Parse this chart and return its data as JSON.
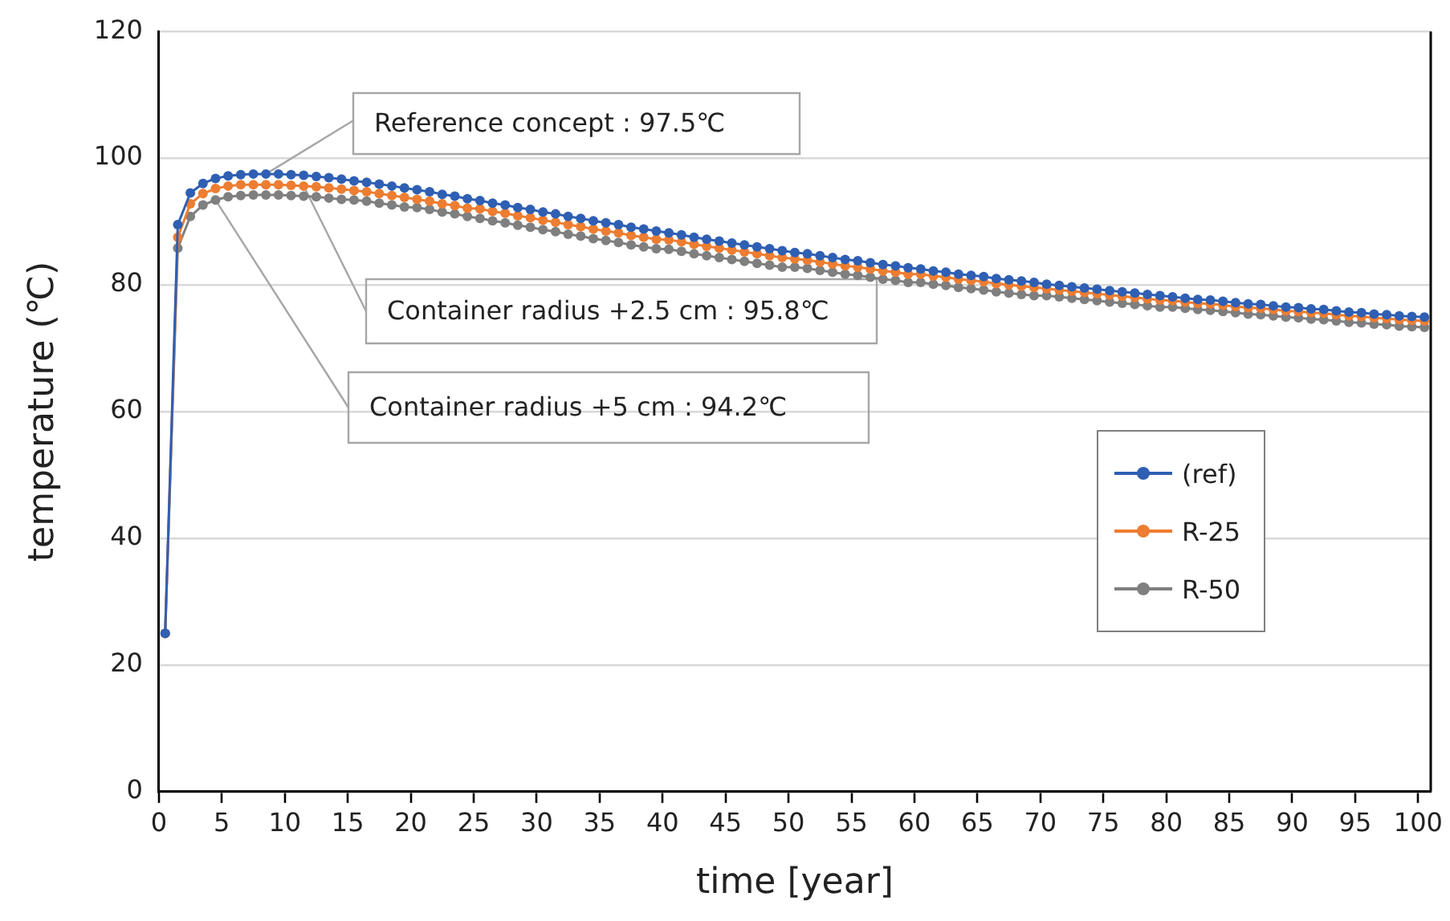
{
  "chart_data": {
    "type": "line",
    "xlabel": "time [year]",
    "ylabel": "temperature (℃)",
    "x": [
      0.5,
      1.5,
      2.5,
      3.5,
      4.5,
      5.5,
      6.5,
      7.5,
      8.5,
      9.5,
      10.5,
      11.5,
      12.5,
      13.5,
      14.5,
      15.5,
      16.5,
      17.5,
      18.5,
      19.5,
      20.5,
      21.5,
      22.5,
      23.5,
      24.5,
      25.5,
      26.5,
      27.5,
      28.5,
      29.5,
      30.5,
      31.5,
      32.5,
      33.5,
      34.5,
      35.5,
      36.5,
      37.5,
      38.5,
      39.5,
      40.5,
      41.5,
      42.5,
      43.5,
      44.5,
      45.5,
      46.5,
      47.5,
      48.5,
      49.5,
      50.5,
      51.5,
      52.5,
      53.5,
      54.5,
      55.5,
      56.5,
      57.5,
      58.5,
      59.5,
      60.5,
      61.5,
      62.5,
      63.5,
      64.5,
      65.5,
      66.5,
      67.5,
      68.5,
      69.5,
      70.5,
      71.5,
      72.5,
      73.5,
      74.5,
      75.5,
      76.5,
      77.5,
      78.5,
      79.5,
      80.5,
      81.5,
      82.5,
      83.5,
      84.5,
      85.5,
      86.5,
      87.5,
      88.5,
      89.5,
      90.5,
      91.5,
      92.5,
      93.5,
      94.5,
      95.5,
      96.5,
      97.5,
      98.5,
      99.5,
      100.5
    ],
    "series": [
      {
        "name": "(ref)",
        "color": "#2f5fb3",
        "values": [
          25,
          89.5,
          94.5,
          96.0,
          96.8,
          97.2,
          97.4,
          97.5,
          97.5,
          97.5,
          97.4,
          97.3,
          97.1,
          96.9,
          96.7,
          96.4,
          96.2,
          95.9,
          95.6,
          95.3,
          95.0,
          94.7,
          94.3,
          94.0,
          93.6,
          93.3,
          92.9,
          92.6,
          92.2,
          91.9,
          91.5,
          91.2,
          90.8,
          90.5,
          90.1,
          89.8,
          89.5,
          89.1,
          88.8,
          88.5,
          88.2,
          87.9,
          87.5,
          87.2,
          86.9,
          86.6,
          86.3,
          86.0,
          85.7,
          85.4,
          85.1,
          84.9,
          84.6,
          84.3,
          84.0,
          83.8,
          83.5,
          83.2,
          83.0,
          82.7,
          82.5,
          82.2,
          82.0,
          81.7,
          81.5,
          81.3,
          81.0,
          80.8,
          80.6,
          80.4,
          80.1,
          79.9,
          79.7,
          79.5,
          79.3,
          79.1,
          78.9,
          78.7,
          78.5,
          78.3,
          78.1,
          77.9,
          77.7,
          77.6,
          77.4,
          77.2,
          77.0,
          76.9,
          76.7,
          76.5,
          76.4,
          76.2,
          76.1,
          75.9,
          75.7,
          75.6,
          75.4,
          75.3,
          75.1,
          75.0,
          74.9
        ]
      },
      {
        "name": "R-25",
        "color": "#ed7d31",
        "values": [
          25,
          87.5,
          92.8,
          94.4,
          95.2,
          95.6,
          95.8,
          95.8,
          95.8,
          95.8,
          95.7,
          95.6,
          95.5,
          95.3,
          95.1,
          94.9,
          94.7,
          94.4,
          94.1,
          93.8,
          93.5,
          93.2,
          92.8,
          92.5,
          92.1,
          92.0,
          91.6,
          91.3,
          90.9,
          90.6,
          90.2,
          89.9,
          89.5,
          89.2,
          88.8,
          88.5,
          88.2,
          87.8,
          87.5,
          87.2,
          87.1,
          86.8,
          86.4,
          86.1,
          85.8,
          85.5,
          85.2,
          84.9,
          84.6,
          84.3,
          84.1,
          83.9,
          83.6,
          83.3,
          83.0,
          82.8,
          82.5,
          82.2,
          82.0,
          81.7,
          81.7,
          81.4,
          81.2,
          80.9,
          80.7,
          80.5,
          80.2,
          80.0,
          79.8,
          79.6,
          79.4,
          79.2,
          79.0,
          78.8,
          78.6,
          78.4,
          78.2,
          78.0,
          77.8,
          77.6,
          77.5,
          77.3,
          77.1,
          77.0,
          76.8,
          76.6,
          76.4,
          76.3,
          76.1,
          75.9,
          75.8,
          75.6,
          75.5,
          75.3,
          75.1,
          75.0,
          74.8,
          74.7,
          74.5,
          74.4,
          74.3
        ]
      },
      {
        "name": "R-50",
        "color": "#7f7f7f",
        "values": [
          25,
          85.8,
          90.8,
          92.6,
          93.4,
          93.9,
          94.1,
          94.2,
          94.2,
          94.2,
          94.1,
          94.0,
          93.9,
          93.7,
          93.5,
          93.4,
          93.2,
          92.9,
          92.6,
          92.3,
          92.2,
          91.9,
          91.5,
          91.2,
          90.8,
          90.5,
          90.1,
          89.8,
          89.4,
          89.1,
          88.7,
          88.4,
          88.0,
          87.7,
          87.3,
          87.0,
          86.7,
          86.3,
          86.0,
          85.7,
          85.6,
          85.3,
          84.9,
          84.6,
          84.3,
          84.0,
          83.7,
          83.4,
          83.1,
          82.8,
          82.8,
          82.6,
          82.3,
          82.0,
          81.7,
          81.5,
          81.2,
          80.9,
          80.7,
          80.4,
          80.4,
          80.1,
          79.9,
          79.6,
          79.4,
          79.2,
          78.9,
          78.7,
          78.5,
          78.3,
          78.3,
          78.1,
          77.9,
          77.7,
          77.5,
          77.3,
          77.1,
          76.9,
          76.7,
          76.5,
          76.5,
          76.3,
          76.1,
          76.0,
          75.8,
          75.6,
          75.4,
          75.3,
          75.1,
          74.9,
          74.8,
          74.6,
          74.5,
          74.3,
          74.1,
          74.0,
          73.8,
          73.7,
          73.5,
          73.4,
          73.3
        ]
      }
    ],
    "xlim": [
      0,
      101
    ],
    "xticks": [
      0,
      5,
      10,
      15,
      20,
      25,
      30,
      35,
      40,
      45,
      50,
      55,
      60,
      65,
      70,
      75,
      80,
      85,
      90,
      95,
      100
    ],
    "ylim": [
      0,
      120
    ],
    "yticks": [
      0,
      20,
      40,
      60,
      80,
      100,
      120
    ],
    "grid": "y",
    "legend": "right",
    "marker": "circle",
    "line_style": "solid",
    "annotations": [
      {
        "text": "Reference concept : 97.5℃",
        "x": 8.5,
        "y": 97.5
      },
      {
        "text": "Container radius +2.5 cm : 95.8℃",
        "x": 11.5,
        "y": 95.6
      },
      {
        "text": "Container radius +5 cm : 94.2℃",
        "x": 4.5,
        "y": 93.4
      }
    ]
  }
}
